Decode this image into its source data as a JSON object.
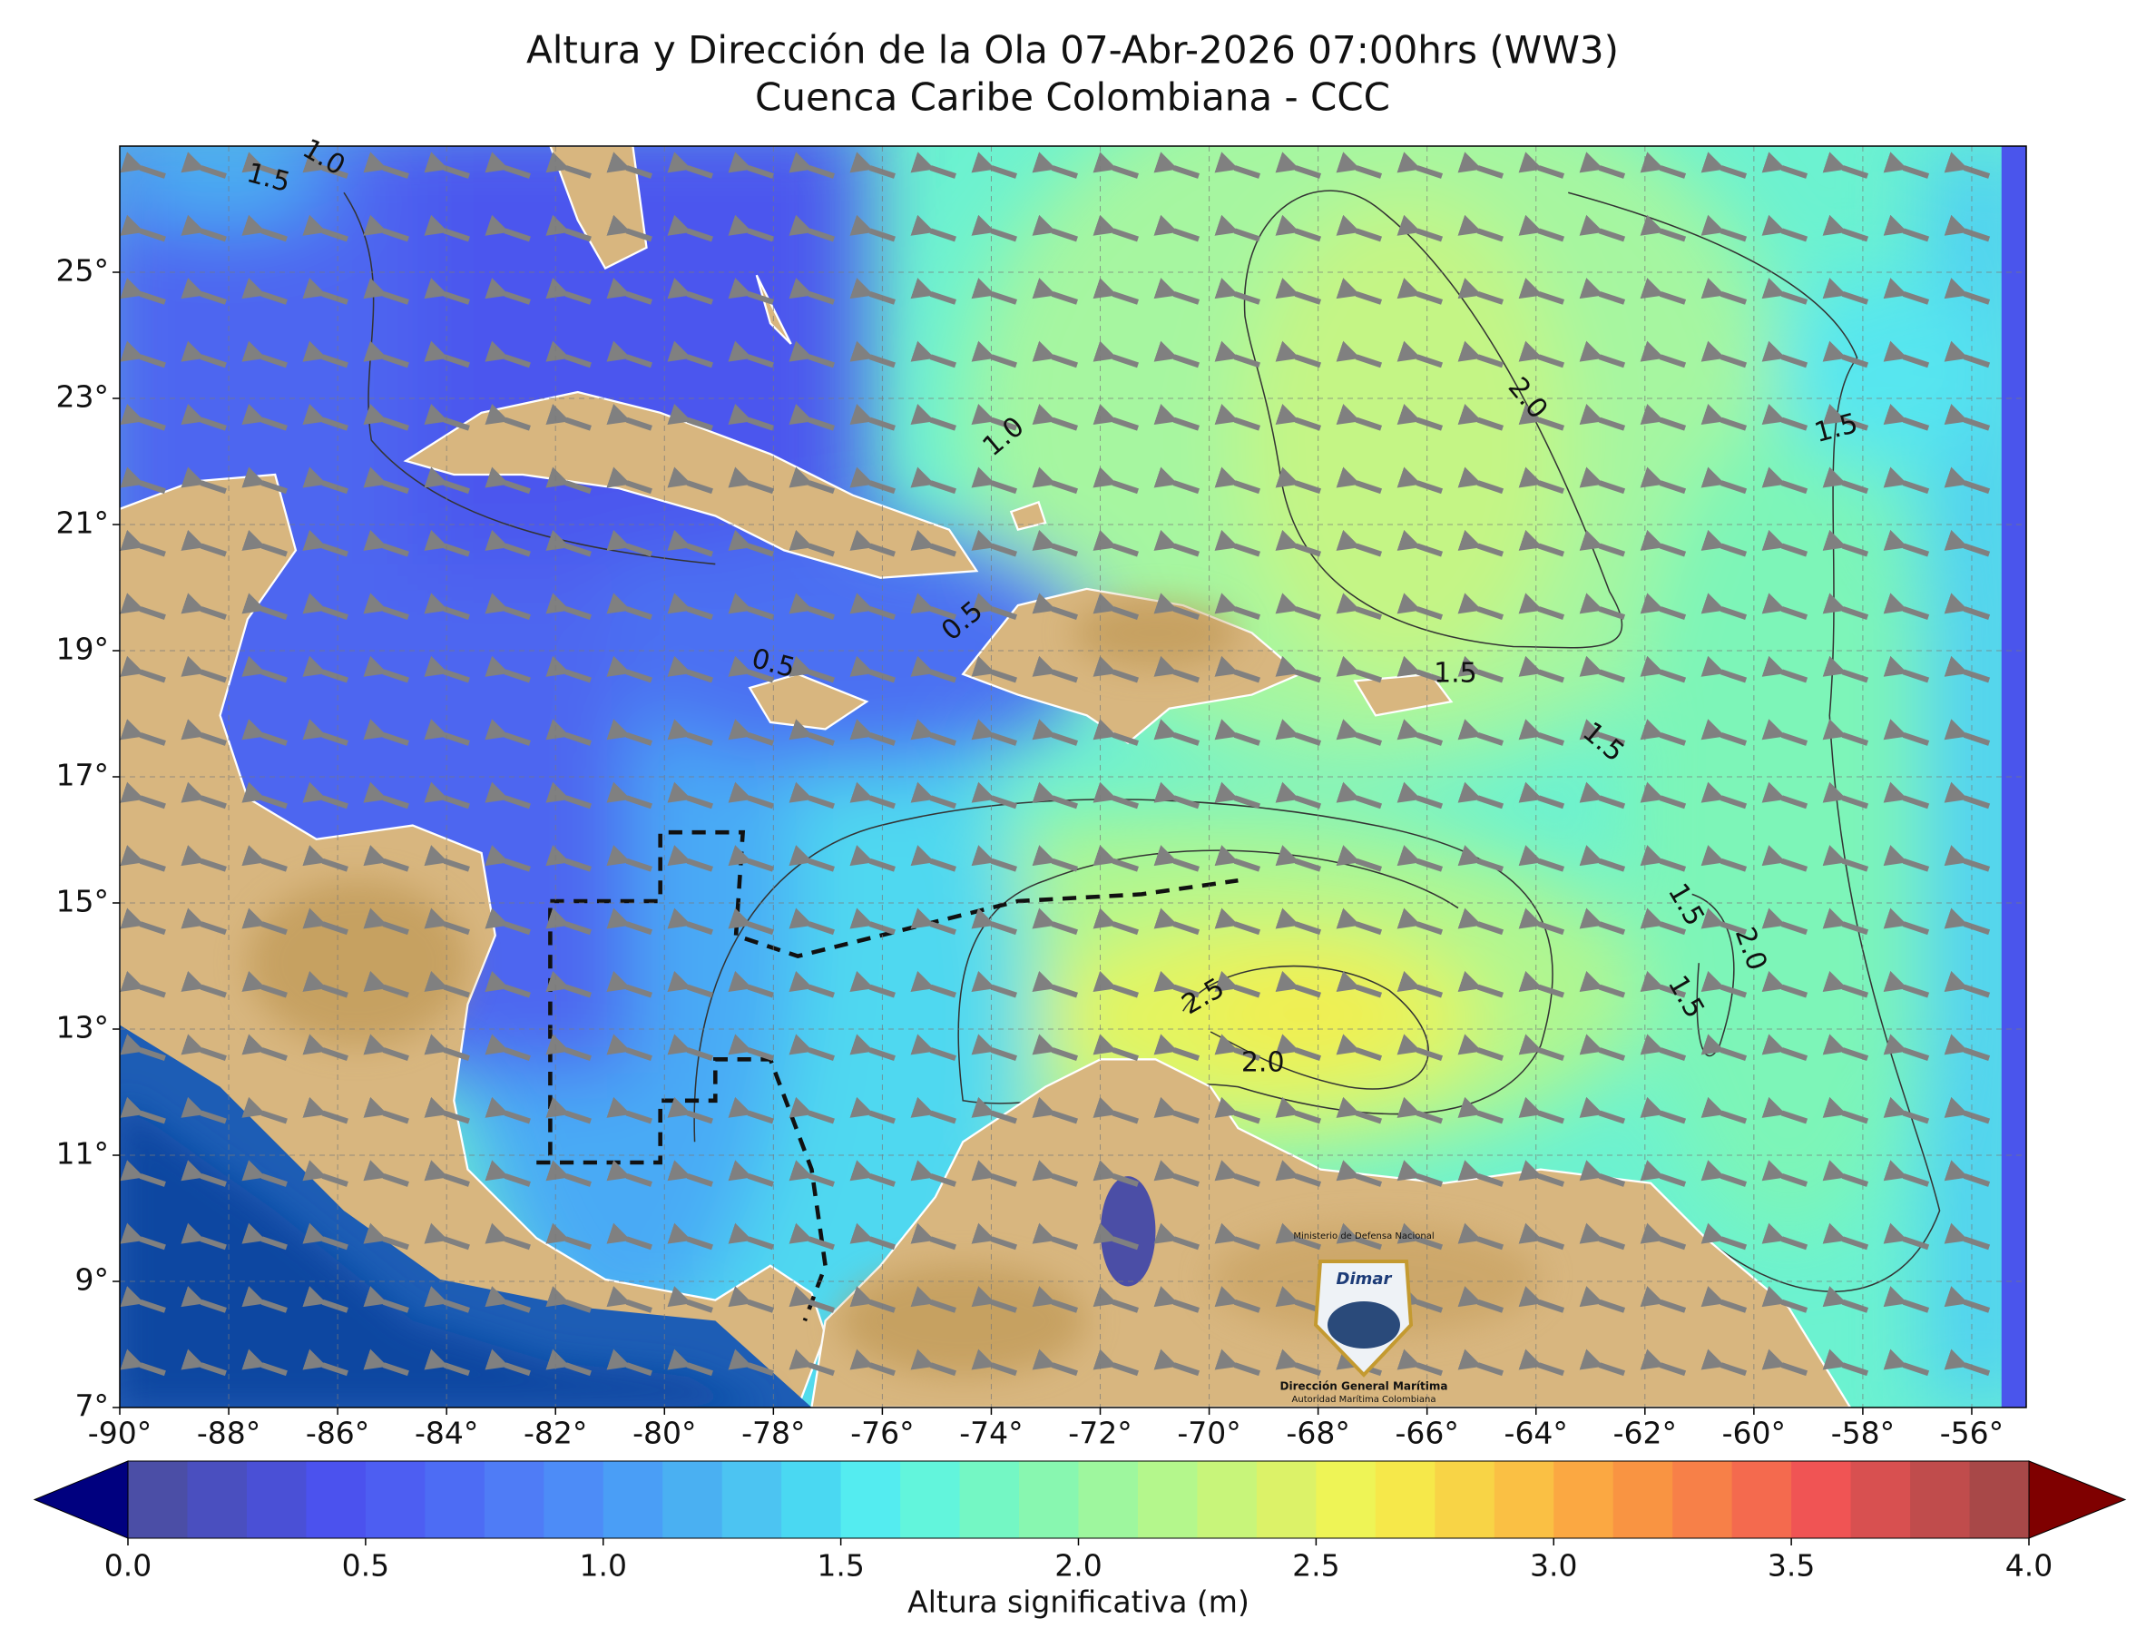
{
  "chart_data": {
    "type": "map",
    "title": "Altura y Dirección de la Ola 07-Abr-2026 07:00hrs (WW3)",
    "subtitle": "Cuenca Caribe Colombiana - CCC",
    "xlim": [
      -90,
      -55
    ],
    "ylim": [
      7,
      27
    ],
    "xticks": [
      {
        "value": -90,
        "label": "-90°"
      },
      {
        "value": -88,
        "label": "-88°"
      },
      {
        "value": -86,
        "label": "-86°"
      },
      {
        "value": -84,
        "label": "-84°"
      },
      {
        "value": -82,
        "label": "-82°"
      },
      {
        "value": -80,
        "label": "-80°"
      },
      {
        "value": -78,
        "label": "-78°"
      },
      {
        "value": -76,
        "label": "-76°"
      },
      {
        "value": -74,
        "label": "-74°"
      },
      {
        "value": -72,
        "label": "-72°"
      },
      {
        "value": -70,
        "label": "-70°"
      },
      {
        "value": -68,
        "label": "-68°"
      },
      {
        "value": -66,
        "label": "-66°"
      },
      {
        "value": -64,
        "label": "-64°"
      },
      {
        "value": -62,
        "label": "-62°"
      },
      {
        "value": -60,
        "label": "-60°"
      },
      {
        "value": -58,
        "label": "-58°"
      },
      {
        "value": -56,
        "label": "-56°"
      }
    ],
    "yticks": [
      {
        "value": 7,
        "label": "7°"
      },
      {
        "value": 9,
        "label": "9°"
      },
      {
        "value": 11,
        "label": "11°"
      },
      {
        "value": 13,
        "label": "13°"
      },
      {
        "value": 15,
        "label": "15°"
      },
      {
        "value": 17,
        "label": "17°"
      },
      {
        "value": 19,
        "label": "19°"
      },
      {
        "value": 21,
        "label": "21°"
      },
      {
        "value": 23,
        "label": "23°"
      },
      {
        "value": 25,
        "label": "25°"
      }
    ],
    "grid": true,
    "colorbar": {
      "label": "Altura significativa (m)",
      "lim": [
        0,
        4
      ],
      "ticks": [
        {
          "value": 0,
          "label": "0.0"
        },
        {
          "value": 0.5,
          "label": "0.5"
        },
        {
          "value": 1,
          "label": "1.0"
        },
        {
          "value": 1.5,
          "label": "1.5"
        },
        {
          "value": 2,
          "label": "2.0"
        },
        {
          "value": 2.5,
          "label": "2.5"
        },
        {
          "value": 3,
          "label": "3.0"
        },
        {
          "value": 3.5,
          "label": "3.5"
        },
        {
          "value": 4,
          "label": "4.0"
        }
      ],
      "colors": [
        "#4b4ea6",
        "#4a4fbf",
        "#4a50d6",
        "#4b52ee",
        "#4d5ef2",
        "#4d6cf4",
        "#4f7cf6",
        "#4d8cf7",
        "#4a9ef6",
        "#4ab0f2",
        "#4cc4f2",
        "#4ad8f2",
        "#54ecf0",
        "#62f5dc",
        "#74f7c4",
        "#88f7b0",
        "#9ef79e",
        "#b4f78c",
        "#c8f57a",
        "#dcf268",
        "#eef456",
        "#f6e84a",
        "#f8d446",
        "#fac044",
        "#fba842",
        "#f99442",
        "#f78048",
        "#f46a4e",
        "#f05454",
        "#d85050",
        "#c04c4c",
        "#a84848"
      ],
      "under_color": "#00007f",
      "over_color": "#7f0000"
    },
    "contour_labels": [
      "1.5",
      "1.0",
      "2.0",
      "1.5",
      "1.0",
      "0.5",
      "0.5",
      "1.5",
      "1.5",
      "1.5",
      "2.0",
      "1.5",
      "2.5",
      "2.0"
    ],
    "logo": {
      "ministry": "Ministerio de Defensa Nacional",
      "brand": "Dimar",
      "name": "Dirección General Marítima",
      "tagline": "Autoridad Marítima Colombiana"
    }
  }
}
